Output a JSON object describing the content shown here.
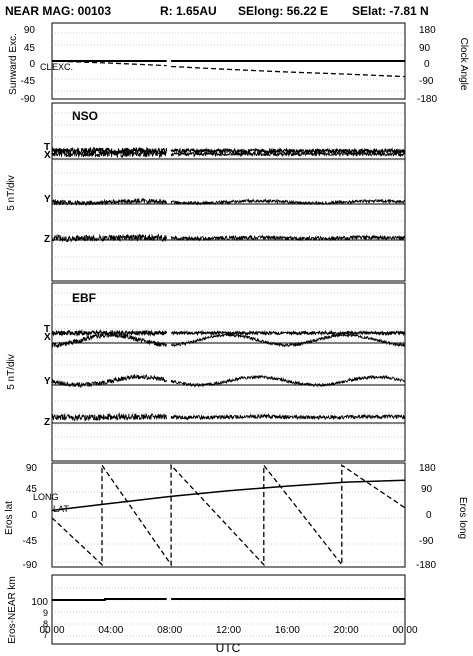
{
  "header": {
    "title": "NEAR MAG: 00103",
    "distance": "R: 1.65AU",
    "selong": "SElong:   56.22 E",
    "selat": "SElat:   -7.81 N"
  },
  "xaxis": {
    "label": "UTC",
    "ticks": [
      "00:00",
      "04:00",
      "08:00",
      "12:00",
      "16:00",
      "20:00",
      "00:00"
    ],
    "range_hours": [
      0,
      24
    ]
  },
  "panels": {
    "clock": {
      "left_label": "Sunward Exc.",
      "right_label": "Clock Angle",
      "left_ticks": [
        "90",
        "45",
        "0",
        "-45",
        "-90"
      ],
      "right_ticks": [
        "180",
        "90",
        "0",
        "-90",
        "-180"
      ],
      "trace_labels": [
        "CL",
        "EXC."
      ]
    },
    "nso": {
      "name": "NSO",
      "ylabel": "5 nT/div",
      "traces": [
        "T",
        "X",
        "Y",
        "Z"
      ]
    },
    "ebf": {
      "name": "EBF",
      "ylabel": "5 nT/div",
      "traces": [
        "T",
        "X",
        "Y",
        "Z"
      ]
    },
    "eros": {
      "left_label": "Eros lat",
      "right_label": "Eros long",
      "left_ticks": [
        "90",
        "45",
        "0",
        "-45",
        "-90"
      ],
      "right_ticks": [
        "180",
        "90",
        "0",
        "-90",
        "-180"
      ],
      "trace_labels": [
        "LONG",
        "LAT"
      ]
    },
    "dist": {
      "left_label": "Eros-NEAR km",
      "ticks": [
        "100",
        "9",
        "8",
        "7"
      ]
    }
  },
  "chart_data": [
    {
      "type": "line",
      "panel": "clock",
      "xlim": [
        0,
        24
      ],
      "ylim": [
        -90,
        90
      ],
      "y2lim": [
        -180,
        180
      ],
      "data_gap_hours": [
        7.8,
        8.1
      ],
      "series": [
        {
          "name": "CL",
          "axis": "right",
          "x": [
            0,
            7.8,
            8.1,
            24
          ],
          "y": [
            0,
            0,
            0,
            0
          ]
        },
        {
          "name": "EXC.",
          "axis": "left",
          "x": [
            0,
            4,
            7.8,
            8.1,
            12,
            16,
            20,
            24
          ],
          "y": [
            0,
            -5,
            -11,
            -13,
            -20,
            -26,
            -31,
            -37
          ]
        }
      ]
    },
    {
      "type": "line",
      "panel": "eros",
      "xlim": [
        0,
        24
      ],
      "ylim": [
        -90,
        90
      ],
      "y2lim": [
        -180,
        180
      ],
      "series": [
        {
          "name": "LONG",
          "axis": "right",
          "x": [
            0,
            3.4,
            3.4,
            8.1,
            8.1,
            14.4,
            14.4,
            19.7,
            19.7,
            24
          ],
          "y": [
            -10,
            -172,
            172,
            -172,
            172,
            -172,
            172,
            -172,
            172,
            25
          ]
        },
        {
          "name": "LAT",
          "axis": "left",
          "x": [
            0,
            4,
            8,
            12,
            16,
            20,
            24
          ],
          "y": [
            8,
            20,
            32,
            42,
            50,
            57,
            60
          ]
        }
      ]
    },
    {
      "type": "line",
      "panel": "dist",
      "xlim": [
        0,
        24
      ],
      "series": [
        {
          "name": "Eros-NEAR km",
          "x": [
            0,
            3.6,
            3.6,
            7.8,
            8.1,
            24
          ],
          "y": [
            100,
            100,
            101,
            101,
            101,
            101
          ]
        }
      ]
    }
  ]
}
